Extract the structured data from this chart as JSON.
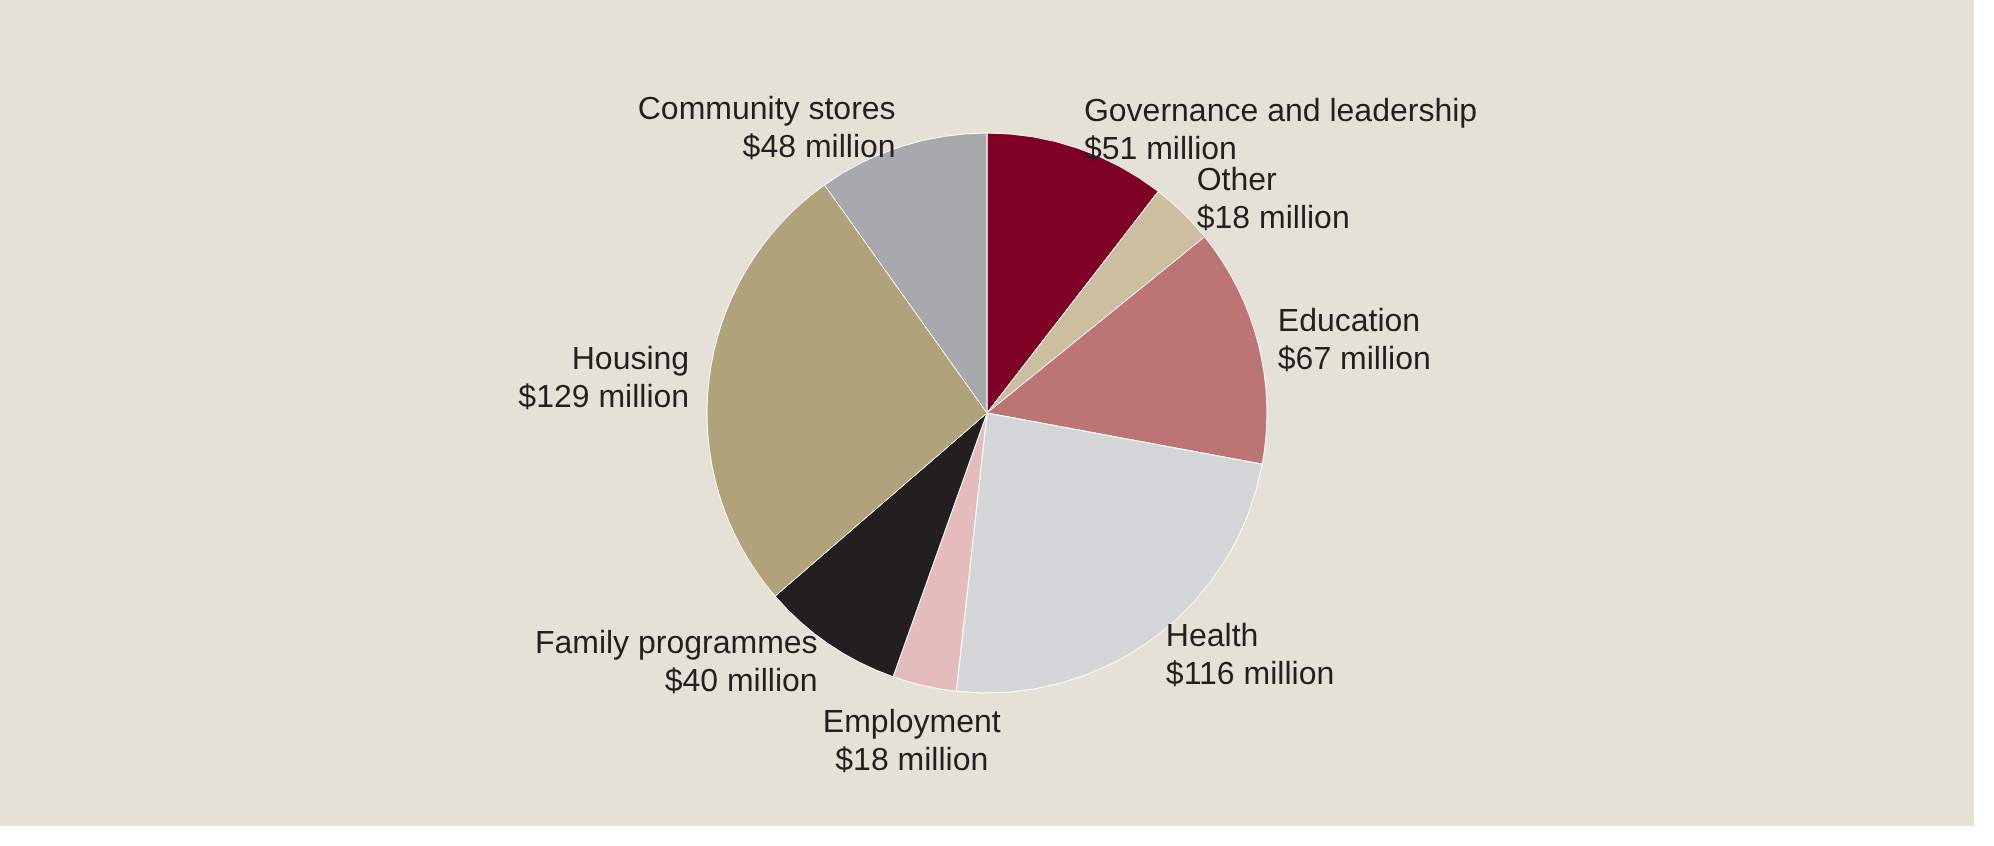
{
  "chart_data": {
    "type": "pie",
    "categories": [
      "Governance and leadership",
      "Other",
      "Education",
      "Health",
      "Employment",
      "Family programmes",
      "Housing",
      "Community stores"
    ],
    "values": [
      51,
      18,
      67,
      116,
      18,
      40,
      129,
      48
    ],
    "value_labels": [
      "$51 million",
      "$18 million",
      "$67 million",
      "$116 million",
      "$18 million",
      "$40 million",
      "$129 million",
      "$48 million"
    ],
    "colors": [
      "#7f0025",
      "#cbbf9f",
      "#bd7474",
      "#d4d5d7",
      "#e3bcbb",
      "#231f20",
      "#b0a27a",
      "#a7a9ac"
    ],
    "legend": false
  }
}
